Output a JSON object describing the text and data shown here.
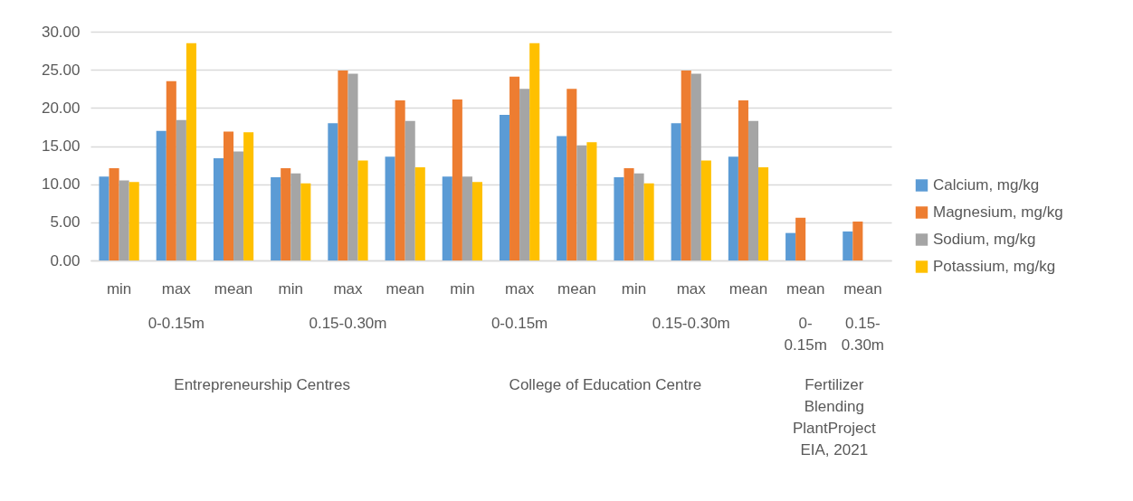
{
  "chart_data": {
    "type": "bar",
    "categories": [
      "min",
      "max",
      "mean",
      "min",
      "max",
      "mean",
      "min",
      "max",
      "mean",
      "min",
      "max",
      "mean",
      "mean",
      "mean"
    ],
    "series": [
      {
        "name": "Calcium, mg/kg",
        "color": "#5b9bd5",
        "values": [
          11.0,
          17.0,
          13.4,
          10.9,
          18.0,
          13.6,
          11.0,
          19.1,
          16.3,
          10.9,
          18.0,
          13.6,
          3.6,
          3.8
        ]
      },
      {
        "name": "Magnesium, mg/kg",
        "color": "#ed7d31",
        "values": [
          12.1,
          23.5,
          16.9,
          12.1,
          24.9,
          21.0,
          21.1,
          24.1,
          22.5,
          12.1,
          24.9,
          21.0,
          5.6,
          5.1
        ]
      },
      {
        "name": "Sodium, mg/kg",
        "color": "#a5a5a5",
        "values": [
          10.5,
          18.4,
          14.3,
          11.4,
          24.5,
          18.3,
          11.0,
          22.5,
          15.1,
          11.4,
          24.5,
          18.3,
          null,
          null
        ]
      },
      {
        "name": "Potassium, mg/kg",
        "color": "#ffc000",
        "values": [
          10.3,
          28.5,
          16.8,
          10.1,
          13.1,
          12.2,
          10.3,
          28.5,
          15.5,
          10.1,
          13.1,
          12.2,
          null,
          null
        ]
      }
    ],
    "annotations": [
      "0-0.15m",
      "0.15-0.30m",
      "0-0.15m",
      "0.15-0.30m",
      "0-0.15m",
      "0.15-0.30m",
      "Entrepreneurship Centres",
      "College of Education Centre",
      "Fertilizer Blending PlantProject EIA, 2021"
    ],
    "ylim": [
      0,
      30
    ],
    "yticks": [
      {
        "value": 0,
        "label": "0.00"
      },
      {
        "value": 5,
        "label": "5.00"
      },
      {
        "value": 10,
        "label": "10.00"
      },
      {
        "value": 15,
        "label": "15.00"
      },
      {
        "value": 20,
        "label": "20.00"
      },
      {
        "value": 25,
        "label": "25.00"
      },
      {
        "value": 30,
        "label": "30.00"
      }
    ],
    "grid": "y",
    "legend": "right"
  }
}
